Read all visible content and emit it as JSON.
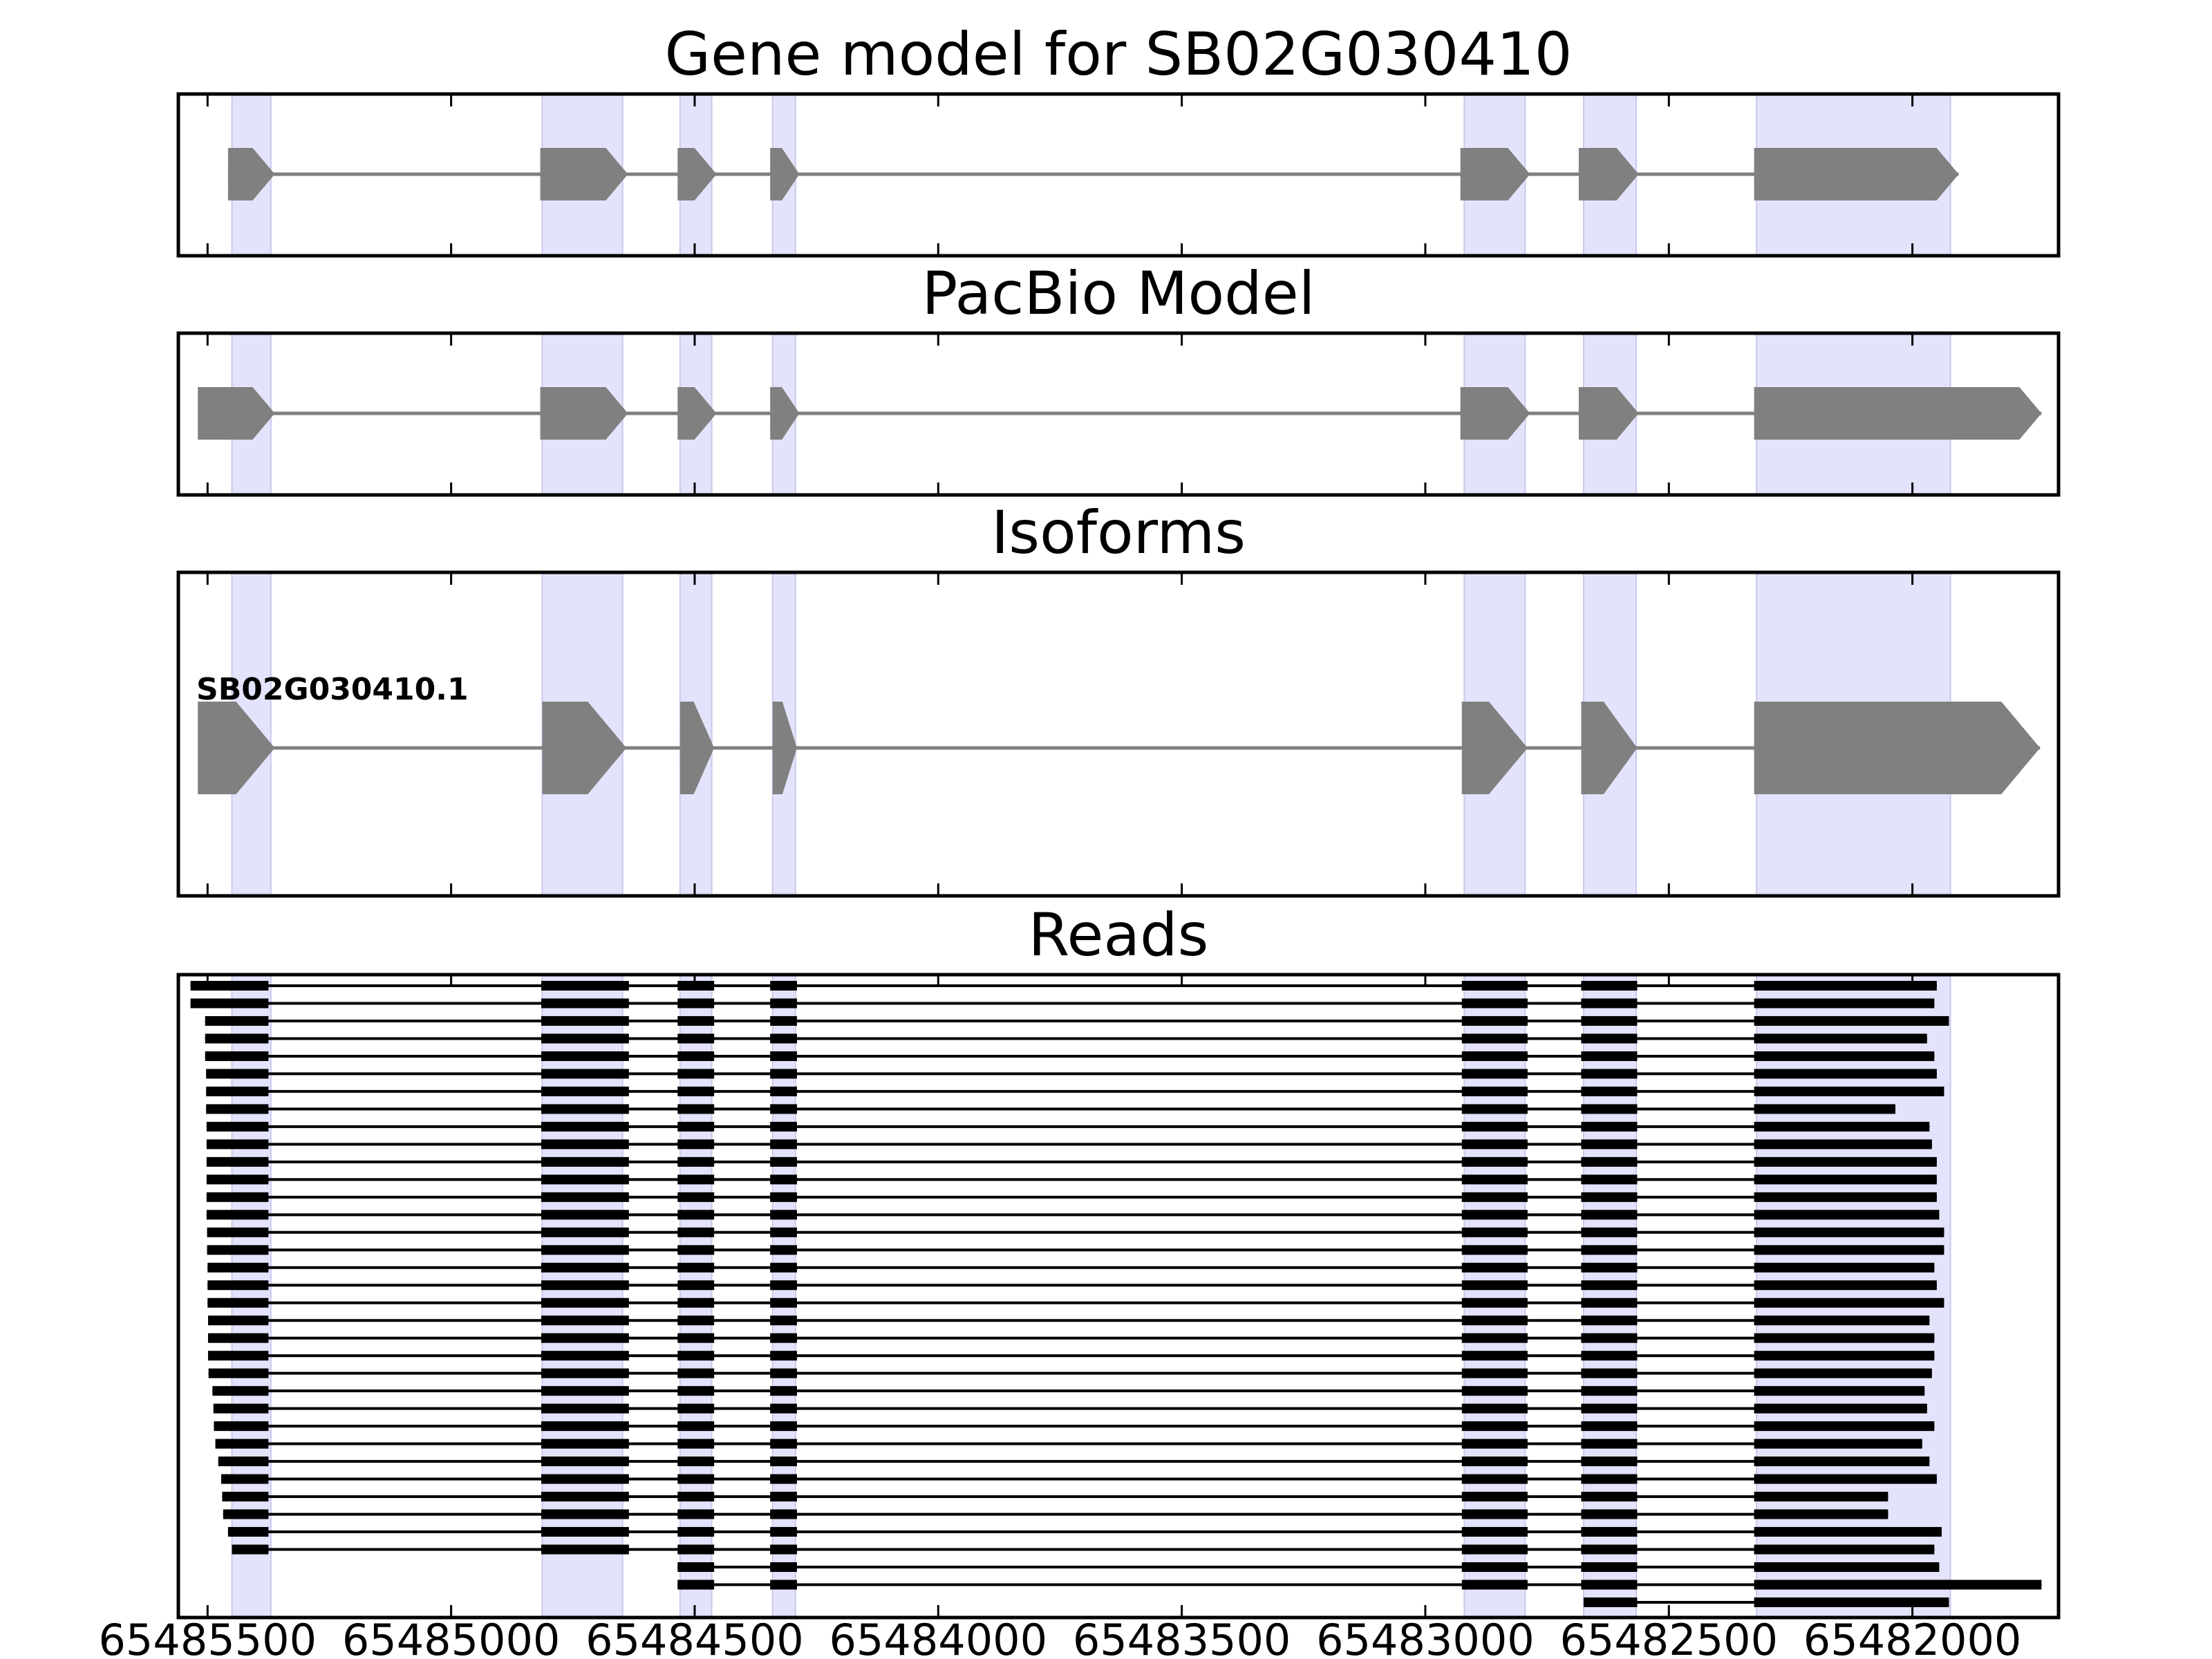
{
  "figure": {
    "x_range": [
      65485560,
      65481700
    ],
    "shade_color": "#e3e3fb",
    "feature_color": "#808080",
    "read_color": "#000000"
  },
  "x_axis": {
    "ticks": [
      {
        "value": 65485500,
        "label": "65485500"
      },
      {
        "value": 65485000,
        "label": "65485000"
      },
      {
        "value": 65484500,
        "label": "65484500"
      },
      {
        "value": 65484000,
        "label": "65484000"
      },
      {
        "value": 65483500,
        "label": "65483500"
      },
      {
        "value": 65483000,
        "label": "65483000"
      },
      {
        "value": 65482500,
        "label": "65482500"
      },
      {
        "value": 65482000,
        "label": "65482000"
      }
    ]
  },
  "shaded_exons": [
    [
      65485450,
      65485370
    ],
    [
      65484813,
      65484648
    ],
    [
      65484530,
      65484465
    ],
    [
      65484340,
      65484293
    ],
    [
      65482920,
      65482795
    ],
    [
      65482675,
      65482567
    ],
    [
      65482320,
      65481922
    ]
  ],
  "panels": [
    {
      "title": "Gene model for SB02G030410",
      "kind": "model",
      "label": "",
      "exons": [
        [
          65485458,
          65485362
        ],
        [
          65484817,
          65484637
        ],
        [
          65484535,
          65484455
        ],
        [
          65484345,
          65484285
        ],
        [
          65482928,
          65482785
        ],
        [
          65482685,
          65482562
        ],
        [
          65482325,
          65481905
        ]
      ]
    },
    {
      "title": "PacBio Model",
      "kind": "model",
      "label": "",
      "exons": [
        [
          65485520,
          65485362
        ],
        [
          65484817,
          65484637
        ],
        [
          65484535,
          65484455
        ],
        [
          65484345,
          65484285
        ],
        [
          65482928,
          65482785
        ],
        [
          65482685,
          65482562
        ],
        [
          65482325,
          65481735
        ]
      ]
    },
    {
      "title": "Isoforms",
      "kind": "isoform",
      "label": "SB02G030410.1",
      "exons": [
        [
          65485520,
          65485362
        ],
        [
          65484813,
          65484640
        ],
        [
          65484530,
          65484460
        ],
        [
          65484340,
          65484290
        ],
        [
          65482925,
          65482790
        ],
        [
          65482680,
          65482565
        ],
        [
          65482325,
          65481738
        ]
      ]
    },
    {
      "title": "Reads",
      "kind": "reads",
      "label": "",
      "exons": []
    }
  ],
  "reads": [
    {
      "start": 65485535,
      "end": 65481950
    },
    {
      "start": 65485535,
      "end": 65481955
    },
    {
      "start": 65485505,
      "end": 65481925
    },
    {
      "start": 65485505,
      "end": 65481970
    },
    {
      "start": 65485505,
      "end": 65481955
    },
    {
      "start": 65485503,
      "end": 65481950
    },
    {
      "start": 65485503,
      "end": 65481935
    },
    {
      "start": 65485503,
      "end": 65482035
    },
    {
      "start": 65485502,
      "end": 65481965
    },
    {
      "start": 65485502,
      "end": 65481960
    },
    {
      "start": 65485502,
      "end": 65481950
    },
    {
      "start": 65485502,
      "end": 65481950
    },
    {
      "start": 65485502,
      "end": 65481950
    },
    {
      "start": 65485502,
      "end": 65481945
    },
    {
      "start": 65485501,
      "end": 65481935
    },
    {
      "start": 65485501,
      "end": 65481935
    },
    {
      "start": 65485500,
      "end": 65481955
    },
    {
      "start": 65485500,
      "end": 65481950
    },
    {
      "start": 65485500,
      "end": 65481935
    },
    {
      "start": 65485499,
      "end": 65481965
    },
    {
      "start": 65485499,
      "end": 65481955
    },
    {
      "start": 65485499,
      "end": 65481955
    },
    {
      "start": 65485498,
      "end": 65481960
    },
    {
      "start": 65485490,
      "end": 65481975
    },
    {
      "start": 65485488,
      "end": 65481970
    },
    {
      "start": 65485487,
      "end": 65481955
    },
    {
      "start": 65485484,
      "end": 65481980
    },
    {
      "start": 65485478,
      "end": 65481965
    },
    {
      "start": 65485472,
      "end": 65481950
    },
    {
      "start": 65485470,
      "end": 65482050
    },
    {
      "start": 65485468,
      "end": 65482050
    },
    {
      "start": 65485458,
      "end": 65481940
    },
    {
      "start": 65485450,
      "end": 65481955
    },
    {
      "start": 65484535,
      "end": 65481945
    },
    {
      "start": 65484535,
      "end": 65481735
    },
    {
      "start": 65482675,
      "end": 65481925
    }
  ],
  "read_exons": [
    [
      65485535,
      65485375
    ],
    [
      65484815,
      65484635
    ],
    [
      65484535,
      65484460
    ],
    [
      65484345,
      65484290
    ],
    [
      65482925,
      65482790
    ],
    [
      65482680,
      65482565
    ],
    [
      65482325,
      65481700
    ]
  ]
}
